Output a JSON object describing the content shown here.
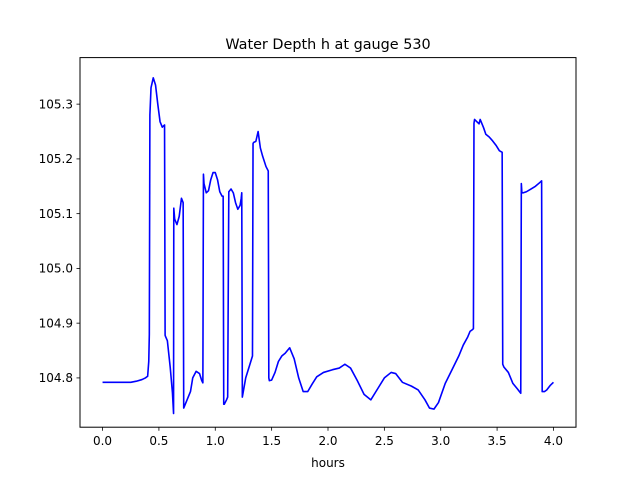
{
  "chart_data": {
    "type": "line",
    "title": "Water Depth h at gauge 530",
    "xlabel": "hours",
    "ylabel": "",
    "xlim": [
      -0.2,
      4.2
    ],
    "ylim": [
      104.71,
      105.385
    ],
    "xticks": [
      0.0,
      0.5,
      1.0,
      1.5,
      2.0,
      2.5,
      3.0,
      3.5,
      4.0
    ],
    "xtick_labels": [
      "0.0",
      "0.5",
      "1.0",
      "1.5",
      "2.0",
      "2.5",
      "3.0",
      "3.5",
      "4.0"
    ],
    "yticks": [
      104.8,
      104.9,
      105.0,
      105.1,
      105.2,
      105.3
    ],
    "ytick_labels": [
      "104.8",
      "104.9",
      "105.0",
      "105.1",
      "105.2",
      "105.3"
    ],
    "grid": false,
    "line_color": "#0000ff",
    "series": [
      {
        "name": "",
        "x": [
          0.0,
          0.1,
          0.2,
          0.25,
          0.3,
          0.35,
          0.38,
          0.4,
          0.41,
          0.415,
          0.42,
          0.43,
          0.45,
          0.47,
          0.49,
          0.51,
          0.53,
          0.55,
          0.555,
          0.56,
          0.575,
          0.6,
          0.62,
          0.63,
          0.632,
          0.64,
          0.66,
          0.68,
          0.7,
          0.715,
          0.72,
          0.75,
          0.78,
          0.8,
          0.83,
          0.86,
          0.88,
          0.89,
          0.895,
          0.9,
          0.92,
          0.94,
          0.96,
          0.98,
          1.0,
          1.02,
          1.04,
          1.06,
          1.07,
          1.075,
          1.08,
          1.1,
          1.11,
          1.12,
          1.14,
          1.16,
          1.18,
          1.2,
          1.22,
          1.23,
          1.235,
          1.24,
          1.27,
          1.3,
          1.33,
          1.335,
          1.34,
          1.36,
          1.38,
          1.4,
          1.42,
          1.45,
          1.47,
          1.475,
          1.48,
          1.5,
          1.53,
          1.56,
          1.59,
          1.62,
          1.66,
          1.7,
          1.74,
          1.78,
          1.82,
          1.86,
          1.9,
          1.96,
          2.04,
          2.1,
          2.15,
          2.2,
          2.26,
          2.32,
          2.38,
          2.44,
          2.5,
          2.56,
          2.6,
          2.66,
          2.74,
          2.8,
          2.86,
          2.9,
          2.94,
          2.98,
          3.04,
          3.1,
          3.16,
          3.2,
          3.24,
          3.26,
          3.28,
          3.29,
          3.295,
          3.3,
          3.32,
          3.34,
          3.35,
          3.37,
          3.38,
          3.4,
          3.43,
          3.46,
          3.49,
          3.52,
          3.545,
          3.55,
          3.56,
          3.6,
          3.64,
          3.68,
          3.71,
          3.715,
          3.72,
          3.73,
          3.76,
          3.8,
          3.84,
          3.88,
          3.895,
          3.9,
          3.92,
          3.94,
          3.97,
          4.0
        ],
        "y": [
          104.792,
          104.792,
          104.792,
          104.792,
          104.794,
          104.797,
          104.8,
          104.803,
          104.83,
          104.88,
          105.28,
          105.33,
          105.348,
          105.335,
          105.3,
          105.268,
          105.258,
          105.262,
          104.878,
          104.875,
          104.868,
          104.82,
          104.773,
          104.735,
          105.11,
          105.09,
          105.08,
          105.095,
          105.128,
          105.12,
          104.745,
          104.76,
          104.775,
          104.8,
          104.812,
          104.808,
          104.795,
          104.791,
          105.172,
          105.155,
          105.138,
          105.142,
          105.162,
          105.175,
          105.175,
          105.162,
          105.14,
          105.132,
          105.132,
          104.752,
          104.752,
          104.76,
          104.765,
          105.14,
          105.145,
          105.138,
          105.12,
          105.108,
          105.115,
          105.128,
          105.138,
          104.765,
          104.8,
          104.82,
          104.84,
          105.228,
          105.23,
          105.232,
          105.25,
          105.22,
          105.205,
          105.186,
          105.178,
          104.8,
          104.795,
          104.796,
          104.81,
          104.83,
          104.84,
          104.845,
          104.855,
          104.835,
          104.8,
          104.775,
          104.775,
          104.789,
          104.802,
          104.81,
          104.815,
          104.818,
          104.825,
          104.818,
          104.795,
          104.77,
          104.76,
          104.78,
          104.8,
          104.81,
          104.808,
          104.792,
          104.785,
          104.778,
          104.76,
          104.745,
          104.743,
          104.755,
          104.79,
          104.815,
          104.84,
          104.86,
          104.875,
          104.885,
          104.888,
          104.89,
          105.265,
          105.272,
          105.268,
          105.264,
          105.272,
          105.262,
          105.257,
          105.245,
          105.24,
          105.233,
          105.225,
          105.215,
          105.212,
          104.825,
          104.82,
          104.81,
          104.79,
          104.78,
          104.772,
          105.155,
          105.138,
          105.138,
          105.14,
          105.145,
          105.15,
          105.157,
          105.16,
          104.775,
          104.775,
          104.778,
          104.786,
          104.792
        ]
      }
    ]
  }
}
